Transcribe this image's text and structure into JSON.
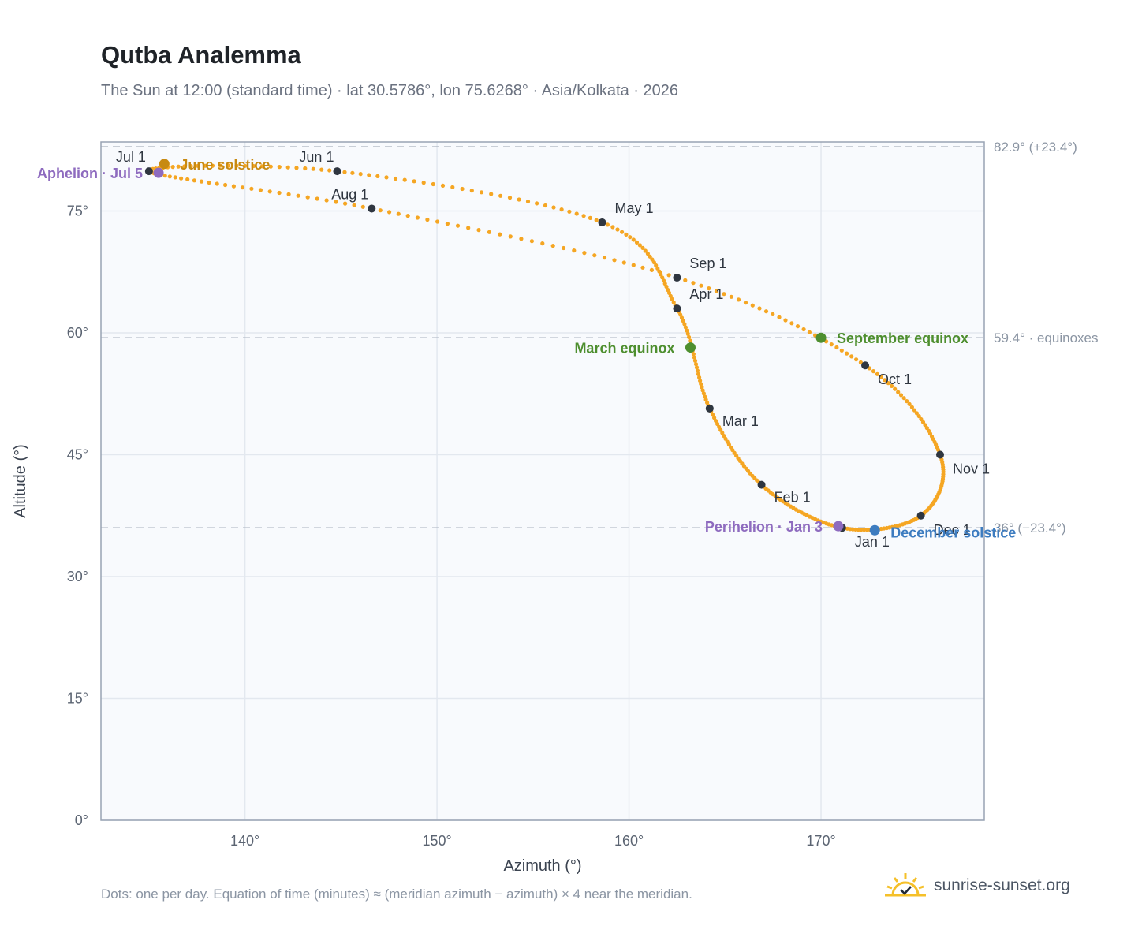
{
  "header": {
    "title": "Qutba Analemma",
    "subtitle": "The Sun at 12:00 (standard time) · lat 30.5786°, lon 75.6268° · Asia/Kolkata · 2026"
  },
  "footer": {
    "note": "Dots: one per day. Equation of time (minutes) ≈ (meridian azimuth − azimuth) × 4 near the meridian.",
    "brand": "sunrise-sunset.org"
  },
  "chart_data": {
    "type": "scatter",
    "xlabel": "Azimuth (°)",
    "ylabel": "Altitude (°)",
    "xlim": [
      132.5,
      178.5
    ],
    "ylim": [
      0,
      83.5
    ],
    "x_ticks": [
      140,
      150,
      160,
      170
    ],
    "x_tick_labels": [
      "140°",
      "150°",
      "160°",
      "170°"
    ],
    "y_ticks": [
      0,
      15,
      30,
      45,
      60,
      75
    ],
    "y_tick_labels": [
      "0°",
      "15°",
      "30°",
      "45°",
      "60°",
      "75°"
    ],
    "grid": true,
    "path_color": "#f5a623",
    "reference_lines": [
      {
        "value": 82.9,
        "label": "82.9° (+23.4°)"
      },
      {
        "value": 59.4,
        "label": "59.4° · equinoxes"
      },
      {
        "value": 36.0,
        "label": "36° (−23.4°)"
      }
    ],
    "month_points": [
      {
        "label": "Jan 1",
        "x": 171.1,
        "y": 36.0,
        "label_pos": "below"
      },
      {
        "label": "Feb 1",
        "x": 166.9,
        "y": 41.3,
        "label_pos": "right"
      },
      {
        "label": "Mar 1",
        "x": 164.2,
        "y": 50.7,
        "label_pos": "right"
      },
      {
        "label": "Apr 1",
        "x": 162.5,
        "y": 63.0,
        "label_pos": "right-up"
      },
      {
        "label": "May 1",
        "x": 158.6,
        "y": 73.6,
        "label_pos": "right-up"
      },
      {
        "label": "Jun 1",
        "x": 144.8,
        "y": 79.9,
        "label_pos": "left-up"
      },
      {
        "label": "Jul 1",
        "x": 135.0,
        "y": 79.9,
        "label_pos": "left-up"
      },
      {
        "label": "Aug 1",
        "x": 146.6,
        "y": 75.3,
        "label_pos": "left-up"
      },
      {
        "label": "Sep 1",
        "x": 162.5,
        "y": 66.8,
        "label_pos": "right-up"
      },
      {
        "label": "Oct 1",
        "x": 172.3,
        "y": 56.0,
        "label_pos": "right-down"
      },
      {
        "label": "Nov 1",
        "x": 176.2,
        "y": 45.0,
        "label_pos": "right-down"
      },
      {
        "label": "Dec 1",
        "x": 175.2,
        "y": 37.5,
        "label_pos": "right-down"
      }
    ],
    "events": [
      {
        "label": "Perihelion · Jan 3",
        "x": 170.9,
        "y": 36.2,
        "color": "#8e6bbf",
        "label_pos": "left"
      },
      {
        "label": "March equinox",
        "x": 163.2,
        "y": 58.2,
        "color": "#4e8f2f",
        "label_pos": "left"
      },
      {
        "label": "June solstice",
        "x": 135.8,
        "y": 80.8,
        "color": "#c78a12",
        "label_pos": "right"
      },
      {
        "label": "Aphelion · Jul 5",
        "x": 135.5,
        "y": 79.7,
        "color": "#8e6bbf",
        "label_pos": "left"
      },
      {
        "label": "September equinox",
        "x": 170.0,
        "y": 59.4,
        "color": "#4e8f2f",
        "label_pos": "right"
      },
      {
        "label": "December solstice",
        "x": 172.8,
        "y": 35.7,
        "color": "#3d7cc0",
        "label_pos": "right-down"
      }
    ]
  }
}
